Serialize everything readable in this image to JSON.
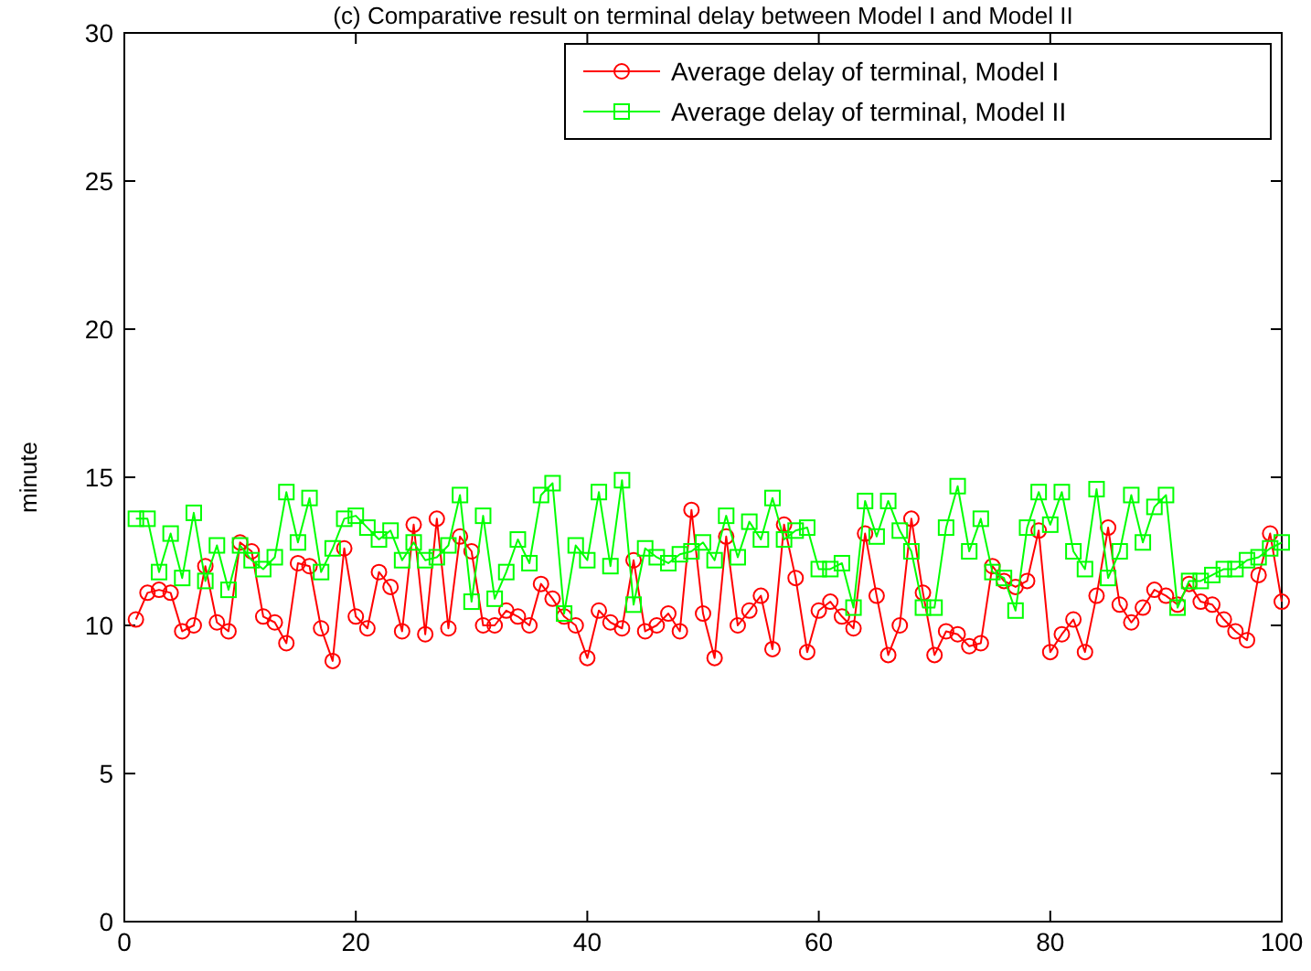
{
  "chart_data": {
    "type": "line",
    "title": "(c) Comparative result on terminal delay between Model I and Model II",
    "ylabel": "minute",
    "x": [
      1,
      2,
      3,
      4,
      5,
      6,
      7,
      8,
      9,
      10,
      11,
      12,
      13,
      14,
      15,
      16,
      17,
      18,
      19,
      20,
      21,
      22,
      23,
      24,
      25,
      26,
      27,
      28,
      29,
      30,
      31,
      32,
      33,
      34,
      35,
      36,
      37,
      38,
      39,
      40,
      41,
      42,
      43,
      44,
      45,
      46,
      47,
      48,
      49,
      50,
      51,
      52,
      53,
      54,
      55,
      56,
      57,
      58,
      59,
      60,
      61,
      62,
      63,
      64,
      65,
      66,
      67,
      68,
      69,
      70,
      71,
      72,
      73,
      74,
      75,
      76,
      77,
      78,
      79,
      80,
      81,
      82,
      83,
      84,
      85,
      86,
      87,
      88,
      89,
      90,
      91,
      92,
      93,
      94,
      95,
      96,
      97,
      98,
      99,
      100
    ],
    "xlim": [
      0,
      100
    ],
    "xticks": [
      0,
      20,
      40,
      60,
      80,
      100
    ],
    "ylim": [
      0,
      30
    ],
    "yticks": [
      0,
      5,
      10,
      15,
      20,
      25,
      30
    ],
    "grid": false,
    "legend": "top right",
    "series": [
      {
        "name": "Average delay of terminal, Model I",
        "color": "#ff0000",
        "marker": "circle",
        "values": [
          10.2,
          11.1,
          11.2,
          11.1,
          9.8,
          10.0,
          12.0,
          10.1,
          9.8,
          12.8,
          12.5,
          10.3,
          10.1,
          9.4,
          12.1,
          12.0,
          9.9,
          8.8,
          12.6,
          10.3,
          9.9,
          11.8,
          11.3,
          9.8,
          13.4,
          9.7,
          13.6,
          9.9,
          13.0,
          12.5,
          10.0,
          10.0,
          10.5,
          10.3,
          10.0,
          11.4,
          10.9,
          10.3,
          10.0,
          8.9,
          10.5,
          10.1,
          9.9,
          12.2,
          9.8,
          10.0,
          10.4,
          9.8,
          13.9,
          10.4,
          8.9,
          13.0,
          10.0,
          10.5,
          11.0,
          9.2,
          13.4,
          11.6,
          9.1,
          10.5,
          10.8,
          10.3,
          9.9,
          13.1,
          11.0,
          9.0,
          10.0,
          13.6,
          11.1,
          9.0,
          9.8,
          9.7,
          9.3,
          9.4,
          12.0,
          11.5,
          11.3,
          11.5,
          13.2,
          9.1,
          9.7,
          10.2,
          9.1,
          11.0,
          13.3,
          10.7,
          10.1,
          10.6,
          11.2,
          11.0,
          10.7,
          11.4,
          10.8,
          10.7,
          10.2,
          9.8,
          9.5,
          11.7,
          13.1,
          10.8
        ]
      },
      {
        "name": "Average delay of terminal, Model II",
        "color": "#00ff00",
        "marker": "square",
        "values": [
          13.6,
          13.6,
          11.8,
          13.1,
          11.6,
          13.8,
          11.5,
          12.7,
          11.2,
          12.7,
          12.2,
          11.9,
          12.3,
          14.5,
          12.8,
          14.3,
          11.8,
          12.6,
          13.6,
          13.7,
          13.3,
          12.9,
          13.2,
          12.2,
          12.8,
          12.2,
          12.3,
          12.7,
          14.4,
          10.8,
          13.7,
          10.9,
          11.8,
          12.9,
          12.1,
          14.4,
          14.8,
          10.4,
          12.7,
          12.2,
          14.5,
          12.0,
          14.9,
          10.7,
          12.6,
          12.3,
          12.1,
          12.4,
          12.5,
          12.8,
          12.2,
          13.7,
          12.3,
          13.5,
          12.9,
          14.3,
          12.9,
          13.2,
          13.3,
          11.9,
          11.9,
          12.1,
          10.6,
          14.2,
          13.0,
          14.2,
          13.2,
          12.5,
          10.6,
          10.6,
          13.3,
          14.7,
          12.5,
          13.6,
          11.8,
          11.6,
          10.5,
          13.3,
          14.5,
          13.4,
          14.5,
          12.5,
          11.9,
          14.6,
          11.6,
          12.5,
          14.4,
          12.8,
          14.0,
          14.4,
          10.6,
          11.5,
          11.5,
          11.7,
          11.9,
          11.9,
          12.2,
          12.3,
          12.6,
          12.8
        ]
      }
    ]
  }
}
